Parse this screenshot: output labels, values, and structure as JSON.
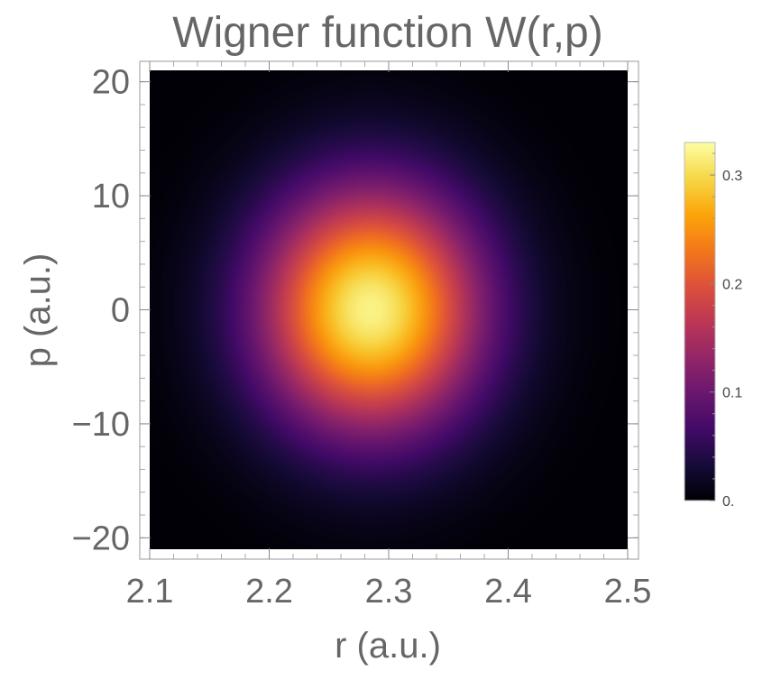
{
  "chart_data": {
    "type": "heatmap",
    "title": "Wigner function W(r,p)",
    "xlabel": "r (a.u.)",
    "ylabel": "p (a.u.)",
    "xlim": [
      2.1,
      2.5
    ],
    "ylim": [
      -21,
      21
    ],
    "x_ticks": [
      "2.1",
      "2.2",
      "2.3",
      "2.4",
      "2.5"
    ],
    "y_ticks": [
      "20",
      "10",
      "0",
      "−10",
      "−20"
    ],
    "x_tick_values": [
      2.1,
      2.2,
      2.3,
      2.4,
      2.5
    ],
    "y_tick_values": [
      20,
      10,
      0,
      -10,
      -20
    ],
    "distribution": {
      "shape": "2D Gaussian",
      "center_r": 2.285,
      "center_p": 0,
      "sigma_r": 0.065,
      "sigma_p": 7.5,
      "peak_value": 0.32
    },
    "colorbar": {
      "colormap": "inferno",
      "range": [
        0,
        0.33
      ],
      "ticks": [
        "0.",
        "0.1",
        "0.2",
        "0.3"
      ],
      "tick_values": [
        0,
        0.1,
        0.2,
        0.3
      ]
    },
    "grid": false
  },
  "colors": {
    "text": "#666666",
    "frame": "#bbbbbb",
    "background": "#000000"
  }
}
